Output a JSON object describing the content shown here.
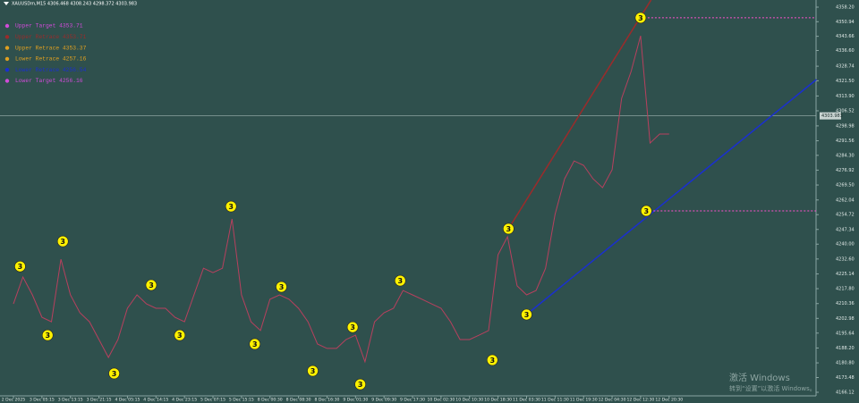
{
  "chart_data": {
    "type": "line",
    "title": "XAUUSDm,M15  4306.468 4308.243 4298.372 4303.983",
    "categories": [
      "2 Dec 2025",
      null,
      null,
      "3 Dec 05:15",
      null,
      null,
      "3 Dec 13:15",
      null,
      null,
      "3 Dec 21:15",
      null,
      null,
      "4 Dec 05:15",
      null,
      null,
      "4 Dec 14:15",
      null,
      null,
      "4 Dec 23:15",
      null,
      null,
      "5 Dec 07:15",
      null,
      null,
      "5 Dec 15:15",
      null,
      null,
      "8 Dec 00:30",
      null,
      null,
      "8 Dec 08:30",
      null,
      null,
      "8 Dec 16:30",
      null,
      null,
      "9 Dec 01:30",
      null,
      null,
      "9 Dec 09:30",
      null,
      null,
      "9 Dec 17:30",
      null,
      null,
      "10 Dec 02:30",
      null,
      null,
      "10 Dec 10:30",
      null,
      null,
      "10 Dec 18:30",
      null,
      null,
      "11 Dec 03:30",
      null,
      null,
      "11 Dec 11:30",
      null,
      null,
      "11 Dec 19:30",
      null,
      null,
      "12 Dec 04:30",
      null,
      null,
      "12 Dec 12:30",
      null,
      null,
      "12 Dec 20:30"
    ],
    "series": [
      {
        "color": "#b8405e",
        "values": [
          4210.2,
          4223.6,
          4214.7,
          4203.5,
          4201.3,
          4232.5,
          4214.7,
          4205.8,
          4201.3,
          4192.4,
          4183.5,
          4192.4,
          4208.0,
          4214.7,
          4210.2,
          4208.0,
          4208.0,
          4203.5,
          4201.3,
          4214.7,
          4228.0,
          4225.8,
          4228.0,
          4252.6,
          4214.7,
          4201.3,
          4196.9,
          4212.5,
          4214.7,
          4212.5,
          4208.0,
          4201.3,
          4190.2,
          4188.0,
          4188.0,
          4192.4,
          4194.6,
          4181.3,
          4201.3,
          4205.8,
          4208.0,
          4216.9,
          4214.7,
          4212.5,
          4210.2,
          4208.0,
          4201.3,
          4192.4,
          4192.4,
          4194.6,
          4196.9,
          4234.7,
          4243.7,
          4219.2,
          4214.7,
          4216.9,
          4228.0,
          4254.8,
          4272.6,
          4281.5,
          4279.3,
          4272.6,
          4268.2,
          4277.1,
          4312.7,
          4326.1,
          4343.9,
          4290.4,
          4294.9,
          4294.9
        ]
      }
    ],
    "ylim": [
      4164.34,
      4361.77
    ],
    "yticks": [
      {
        "value": 4358.2,
        "label": "4358.20"
      },
      4350.94,
      4343.66,
      {
        "value": 4336.6,
        "label": "4336.60"
      },
      4328.74,
      {
        "value": 4321.5,
        "label": "4321.50"
      },
      {
        "value": 4313.9,
        "label": "4313.90"
      },
      4306.52,
      4298.98,
      4291.56,
      {
        "value": 4284.3,
        "label": "4284.30"
      },
      4276.92,
      {
        "value": 4269.5,
        "label": "4269.50"
      },
      4262.04,
      4254.72,
      4247.34,
      {
        "value": 4240,
        "label": "4240.00"
      },
      {
        "value": 4232.6,
        "label": "4232.60"
      },
      4225.14,
      {
        "value": 4217.8,
        "label": "4217.80"
      },
      4210.36,
      4202.98,
      4195.64,
      {
        "value": 4188.2,
        "label": "4188.20"
      },
      {
        "value": 4180.8,
        "label": "4180.80"
      },
      4173.48,
      4166.12
    ],
    "current_price": 4303.983,
    "legend": [
      {
        "text": "Upper Target  4353.71",
        "color": "#d04bd8"
      },
      {
        "text": "Upper Retrace 4353.71",
        "color": "#9b2b2b"
      },
      {
        "text": "Upper Retrace 4353.37",
        "color": "#e0a020"
      },
      {
        "text": "Lower Retrace 4257.16",
        "color": "#e0a020"
      },
      {
        "text": "Lower Retrace 4256.54",
        "color": "#1a2fd0"
      },
      {
        "text": "Lower Target  4256.16",
        "color": "#d04bd8"
      }
    ],
    "markers": [
      {
        "label": "3",
        "x": 0.7,
        "value": 4228.9
      },
      {
        "label": "3",
        "x": 3.6,
        "value": 4194.6
      },
      {
        "label": "3",
        "x": 5.2,
        "value": 4241.4
      },
      {
        "label": "3",
        "x": 10.6,
        "value": 4175.5
      },
      {
        "label": "3",
        "x": 14.5,
        "value": 4219.6
      },
      {
        "label": "3",
        "x": 17.5,
        "value": 4194.6
      },
      {
        "label": "3",
        "x": 22.9,
        "value": 4258.8
      },
      {
        "label": "3",
        "x": 25.4,
        "value": 4190.2
      },
      {
        "label": "3",
        "x": 28.2,
        "value": 4218.7
      },
      {
        "label": "3",
        "x": 31.5,
        "value": 4176.8
      },
      {
        "label": "3",
        "x": 35.7,
        "value": 4198.6
      },
      {
        "label": "3",
        "x": 36.5,
        "value": 4170.1
      },
      {
        "label": "3",
        "x": 40.7,
        "value": 4221.8
      },
      {
        "label": "3",
        "x": 50.4,
        "value": 4182.2
      },
      {
        "label": "3",
        "x": 52.1,
        "value": 4247.7
      },
      {
        "label": "3",
        "x": 54.0,
        "value": 4204.9
      },
      {
        "label": "3",
        "x": 66.0,
        "value": 4352.9
      },
      {
        "label": "3",
        "x": 66.6,
        "value": 4256.6
      }
    ],
    "trend_lines": [
      {
        "color": "#9b2b2b",
        "points": [
          [
            52.1,
            4247.7
          ],
          [
            67.1,
            4361.8
          ]
        ]
      },
      {
        "color": "#1a2fd0",
        "points": [
          [
            54.0,
            4204.9
          ],
          [
            84.5,
            4322.1
          ]
        ]
      }
    ],
    "levels": [
      {
        "value": 4352.9,
        "from": 66.0,
        "color": "#ff4fd0"
      },
      {
        "value": 4256.6,
        "from": 66.6,
        "color": "#ff4fd0"
      }
    ],
    "watermark": [
      "激活 Windows",
      "转到“设置”以激活 Windows。"
    ]
  }
}
